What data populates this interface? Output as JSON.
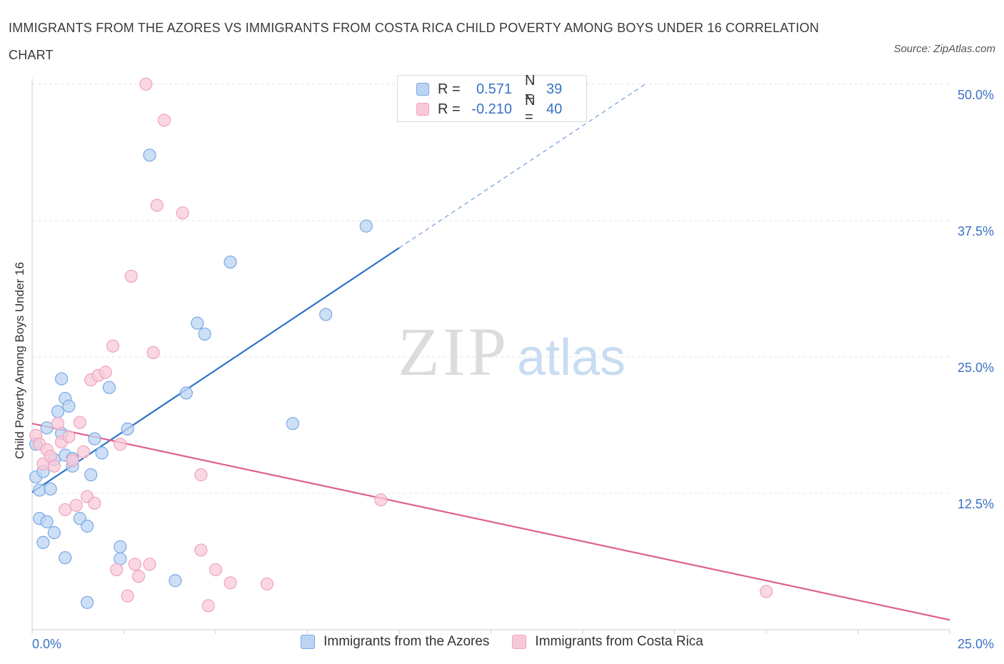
{
  "title": "IMMIGRANTS FROM THE AZORES VS IMMIGRANTS FROM COSTA RICA CHILD POVERTY AMONG BOYS UNDER 16 CORRELATION CHART",
  "source": "Source: ZipAtlas.com",
  "watermark": {
    "zip": "ZIP",
    "atlas": "atlas"
  },
  "legend": {
    "r_label": "R =",
    "n_label": "N =",
    "rows": [
      {
        "r": "0.571",
        "n": "39"
      },
      {
        "r": "-0.210",
        "n": "40"
      }
    ]
  },
  "chart_data": {
    "type": "scatter",
    "ylabel": "Child Poverty Among Boys Under 16",
    "xlim": [
      0,
      25
    ],
    "ylim": [
      0,
      50
    ],
    "x_tick_labels": [
      {
        "value": 0,
        "label": "0.0%"
      },
      {
        "value": 25,
        "label": "25.0%"
      }
    ],
    "y_tick_labels": [
      {
        "value": 12.5,
        "label": "12.5%"
      },
      {
        "value": 25,
        "label": "25.0%"
      },
      {
        "value": 37.5,
        "label": "37.5%"
      },
      {
        "value": 50,
        "label": "50.0%"
      }
    ],
    "grid": true,
    "legend_position": "top-center",
    "series": [
      {
        "name": "Immigrants from the Azores",
        "color": "#7aa8e4",
        "fill": "#bcd4f3",
        "line_color": "#2f74c8",
        "trend": {
          "x0": 0,
          "y0": 12.6,
          "x1": 10.0,
          "y1": 35.0,
          "dash_to_x": 16.7,
          "dash_to_y": 50.0
        },
        "points": [
          {
            "x": 0.1,
            "y": 17.0
          },
          {
            "x": 0.1,
            "y": 14.0
          },
          {
            "x": 0.2,
            "y": 12.8
          },
          {
            "x": 0.2,
            "y": 10.2
          },
          {
            "x": 0.3,
            "y": 8.0
          },
          {
            "x": 0.3,
            "y": 14.5
          },
          {
            "x": 0.4,
            "y": 18.5
          },
          {
            "x": 0.4,
            "y": 9.9
          },
          {
            "x": 0.5,
            "y": 12.9
          },
          {
            "x": 0.6,
            "y": 8.9
          },
          {
            "x": 0.6,
            "y": 15.6
          },
          {
            "x": 0.7,
            "y": 20.0
          },
          {
            "x": 0.8,
            "y": 18.0
          },
          {
            "x": 0.8,
            "y": 23.0
          },
          {
            "x": 0.9,
            "y": 21.2
          },
          {
            "x": 0.9,
            "y": 6.6
          },
          {
            "x": 0.9,
            "y": 16.0
          },
          {
            "x": 1.0,
            "y": 20.5
          },
          {
            "x": 1.1,
            "y": 15.0
          },
          {
            "x": 1.1,
            "y": 15.7
          },
          {
            "x": 1.3,
            "y": 10.2
          },
          {
            "x": 1.5,
            "y": 9.5
          },
          {
            "x": 1.6,
            "y": 14.2
          },
          {
            "x": 1.7,
            "y": 17.5
          },
          {
            "x": 1.9,
            "y": 16.2
          },
          {
            "x": 2.1,
            "y": 22.2
          },
          {
            "x": 2.4,
            "y": 7.6
          },
          {
            "x": 2.4,
            "y": 6.5
          },
          {
            "x": 2.6,
            "y": 18.4
          },
          {
            "x": 3.2,
            "y": 43.5
          },
          {
            "x": 3.9,
            "y": 4.5
          },
          {
            "x": 4.2,
            "y": 21.7
          },
          {
            "x": 4.5,
            "y": 28.1
          },
          {
            "x": 4.7,
            "y": 27.1
          },
          {
            "x": 5.4,
            "y": 33.7
          },
          {
            "x": 7.1,
            "y": 18.9
          },
          {
            "x": 8.0,
            "y": 28.9
          },
          {
            "x": 9.1,
            "y": 37.0
          },
          {
            "x": 1.5,
            "y": 2.5
          }
        ]
      },
      {
        "name": "Immigrants from Costa Rica",
        "color": "#f0a3bc",
        "fill": "#f8cad9",
        "line_color": "#e0608a",
        "trend": {
          "x0": 0,
          "y0": 18.9,
          "x1": 25,
          "y1": 0.9
        },
        "points": [
          {
            "x": 0.1,
            "y": 17.8
          },
          {
            "x": 0.2,
            "y": 17.0
          },
          {
            "x": 0.3,
            "y": 15.2
          },
          {
            "x": 0.4,
            "y": 16.5
          },
          {
            "x": 0.5,
            "y": 15.9
          },
          {
            "x": 0.6,
            "y": 15.0
          },
          {
            "x": 0.7,
            "y": 18.9
          },
          {
            "x": 0.8,
            "y": 17.2
          },
          {
            "x": 0.9,
            "y": 11.0
          },
          {
            "x": 1.0,
            "y": 17.7
          },
          {
            "x": 1.1,
            "y": 15.5
          },
          {
            "x": 1.2,
            "y": 11.4
          },
          {
            "x": 1.3,
            "y": 19.0
          },
          {
            "x": 1.4,
            "y": 16.3
          },
          {
            "x": 1.5,
            "y": 12.2
          },
          {
            "x": 1.6,
            "y": 22.9
          },
          {
            "x": 1.7,
            "y": 11.6
          },
          {
            "x": 1.8,
            "y": 23.3
          },
          {
            "x": 2.0,
            "y": 23.6
          },
          {
            "x": 2.2,
            "y": 26.0
          },
          {
            "x": 2.3,
            "y": 5.5
          },
          {
            "x": 2.4,
            "y": 17.0
          },
          {
            "x": 2.6,
            "y": 3.1
          },
          {
            "x": 2.7,
            "y": 32.4
          },
          {
            "x": 2.8,
            "y": 6.0
          },
          {
            "x": 2.9,
            "y": 4.9
          },
          {
            "x": 3.1,
            "y": 50.0
          },
          {
            "x": 3.2,
            "y": 6.0
          },
          {
            "x": 3.3,
            "y": 25.4
          },
          {
            "x": 3.4,
            "y": 38.9
          },
          {
            "x": 3.6,
            "y": 46.7
          },
          {
            "x": 4.1,
            "y": 38.2
          },
          {
            "x": 4.6,
            "y": 14.2
          },
          {
            "x": 4.6,
            "y": 7.3
          },
          {
            "x": 4.8,
            "y": 2.2
          },
          {
            "x": 5.0,
            "y": 5.5
          },
          {
            "x": 5.4,
            "y": 4.3
          },
          {
            "x": 6.4,
            "y": 4.2
          },
          {
            "x": 9.5,
            "y": 11.9
          },
          {
            "x": 20.0,
            "y": 3.5
          }
        ]
      }
    ]
  }
}
